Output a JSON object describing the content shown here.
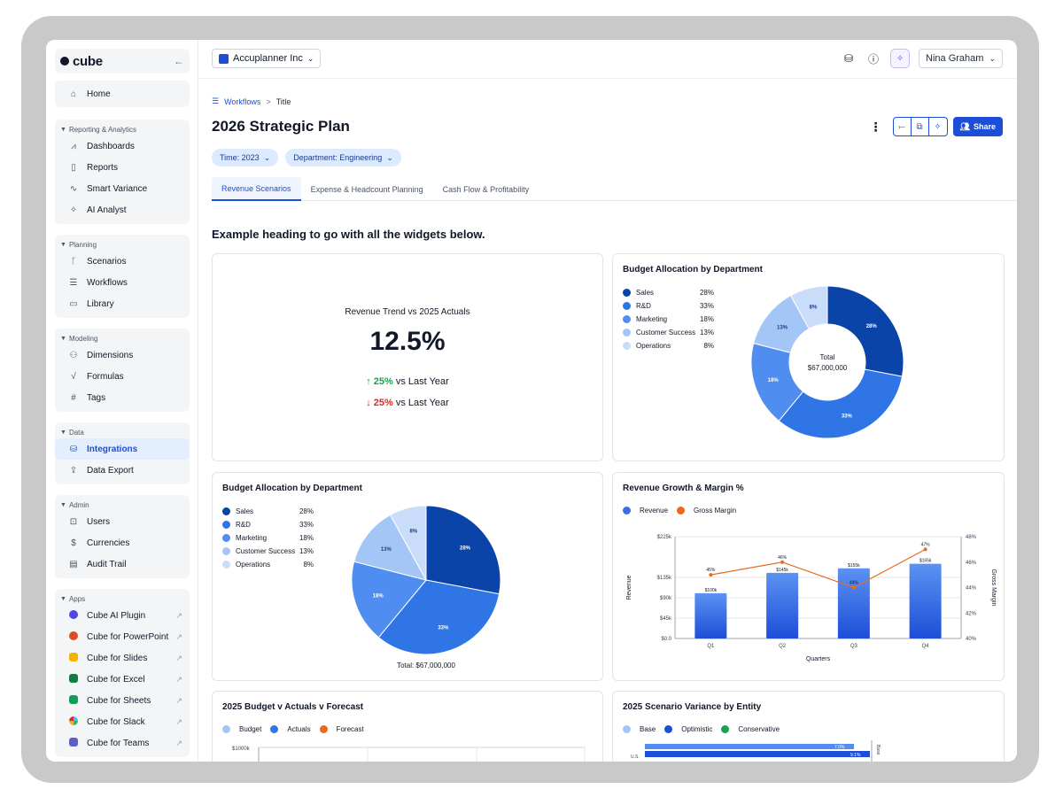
{
  "app": {
    "logo_text": "cube",
    "collapse_icon": "arrow-left-icon"
  },
  "sidebar": {
    "home": "Home",
    "groups": [
      {
        "title": "Reporting & Analytics",
        "items": [
          "Dashboards",
          "Reports",
          "Smart Variance",
          "AI Analyst"
        ]
      },
      {
        "title": "Planning",
        "items": [
          "Scenarios",
          "Workflows",
          "Library"
        ]
      },
      {
        "title": "Modeling",
        "items": [
          "Dimensions",
          "Formulas",
          "Tags"
        ]
      },
      {
        "title": "Data",
        "items": [
          "Integrations",
          "Data Export"
        ]
      },
      {
        "title": "Admin",
        "items": [
          "Users",
          "Currencies",
          "Audit Trail"
        ]
      },
      {
        "title": "Apps",
        "items": [
          "Cube AI Plugin",
          "Cube for PowerPoint",
          "Cube for Slides",
          "Cube for Excel",
          "Cube for Sheets",
          "Cube for Slack",
          "Cube for Teams"
        ]
      }
    ],
    "active_item": "Integrations",
    "app_colors": [
      "#4f46e5",
      "#dc4a26",
      "#f4b400",
      "#107c41",
      "#0f9d58",
      "#36c5f0",
      "#5b5fc7"
    ]
  },
  "topbar": {
    "org": "Accuplanner Inc",
    "user": "Nina Graham"
  },
  "breadcrumb": {
    "root": "Workflows",
    "separator": ">",
    "current": "Title"
  },
  "page": {
    "title": "2026 Strategic Plan",
    "share_label": "Share",
    "filters": [
      "Time: 2023",
      "Department: Engineering"
    ],
    "tabs": [
      "Revenue Scenarios",
      "Expense & Headcount Planning",
      "Cash Flow & Profitability"
    ],
    "active_tab": 0,
    "section_heading": "Example heading to go with all the widgets below."
  },
  "kpi": {
    "title": "Revenue Trend vs 2025 Actuals",
    "value": "12.5%",
    "up_pct": "25%",
    "up_text": "vs Last Year",
    "down_pct": "25%",
    "down_text": "vs Last Year"
  },
  "chart_data": [
    {
      "type": "pie",
      "variant": "donut",
      "title": "Budget Allocation by Department",
      "labels": [
        "Sales",
        "R&D",
        "Marketing",
        "Customer Success",
        "Operations"
      ],
      "values": [
        28,
        33,
        18,
        13,
        8
      ],
      "value_labels": [
        "28%",
        "33%",
        "18%",
        "13%",
        "8%"
      ],
      "colors": [
        "#0a44a8",
        "#2f75e6",
        "#4f8ef0",
        "#a3c6f7",
        "#c9ddfa"
      ],
      "center_label": "Total",
      "center_value": "$67,000,000",
      "legend": "left"
    },
    {
      "type": "pie",
      "title": "Budget Allocation by Department",
      "labels": [
        "Sales",
        "R&D",
        "Marketing",
        "Customer Success",
        "Operations"
      ],
      "values": [
        28,
        33,
        18,
        13,
        8
      ],
      "value_labels": [
        "28%",
        "33%",
        "18%",
        "13%",
        "8%"
      ],
      "colors": [
        "#0a44a8",
        "#2f75e6",
        "#4f8ef0",
        "#a3c6f7",
        "#c9ddfa"
      ],
      "total_label": "Total: $67,000,000",
      "legend": "left"
    },
    {
      "type": "bar",
      "title": "Revenue Growth & Margin %",
      "categories": [
        "Q1",
        "Q2",
        "Q3",
        "Q4"
      ],
      "series": [
        {
          "name": "Revenue",
          "type": "bar",
          "values": [
            100,
            145,
            155,
            165
          ],
          "labels": [
            "$100k",
            "$145k",
            "$155k",
            "$165k"
          ],
          "color": "#3b6fe0"
        },
        {
          "name": "Gross Margin",
          "type": "line",
          "axis": "right",
          "values": [
            45,
            46,
            44,
            47
          ],
          "labels": [
            "45%",
            "46%",
            "44%",
            "47%"
          ],
          "color": "#ea6a1d"
        }
      ],
      "xlabel": "Quarters",
      "ylabel": "Revenue",
      "y2label": "Gross Margin",
      "ylim": [
        0,
        225
      ],
      "yticks": [
        "$0.0",
        "$45k",
        "$90k",
        "$135k",
        "$225k"
      ],
      "y2lim": [
        40,
        48
      ],
      "y2ticks": [
        "40%",
        "42%",
        "44%",
        "46%",
        "48%"
      ],
      "legend": "top-left"
    },
    {
      "type": "bar",
      "title": "2025 Budget v Actuals v Forecast",
      "series": [
        {
          "name": "Budget",
          "color": "#a3c6f7"
        },
        {
          "name": "Actuals",
          "color": "#2f75e6"
        },
        {
          "name": "Forecast",
          "color": "#ea6a1d"
        }
      ],
      "yticks": [
        "$1000k"
      ],
      "legend": "top-left"
    },
    {
      "type": "bar",
      "orientation": "horizontal",
      "title": "2025 Scenario Variance by Entity",
      "series": [
        {
          "name": "Base",
          "color": "#a3c6f7"
        },
        {
          "name": "Optimistic",
          "color": "#1d4ed8"
        },
        {
          "name": "Conservative",
          "color": "#16a34a"
        }
      ],
      "values": [
        "7.0%",
        "9.1%"
      ],
      "category": "U.S.",
      "y2label": "Base",
      "legend": "top-left"
    }
  ]
}
